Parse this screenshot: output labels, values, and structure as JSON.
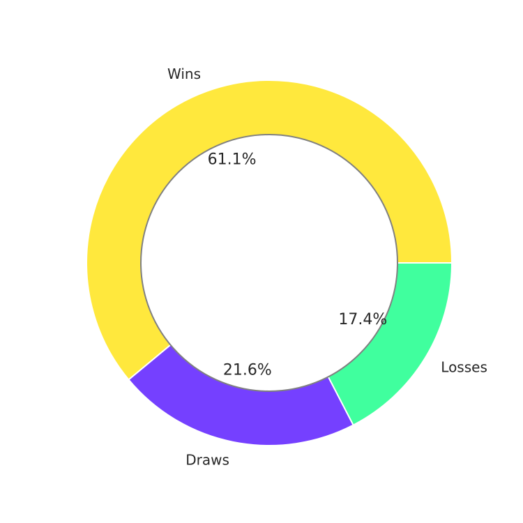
{
  "chart_data": {
    "type": "pie",
    "donut": true,
    "categories": [
      "Wins",
      "Draws",
      "Losses"
    ],
    "values": [
      61.1,
      21.6,
      17.4
    ],
    "value_labels": [
      "61.1%",
      "21.6%",
      "17.4%"
    ],
    "colors": [
      "#ffe83d",
      "#7540ff",
      "#40ff9e"
    ],
    "center_circle_edge_color": "#808080",
    "title": "",
    "legend": "none"
  }
}
